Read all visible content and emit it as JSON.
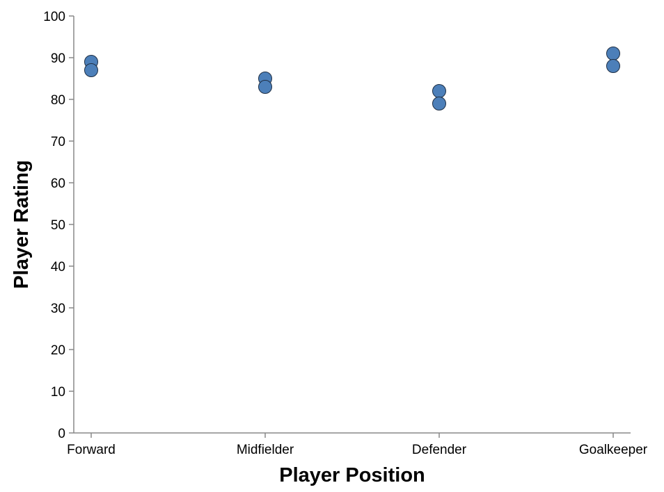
{
  "chart_data": {
    "type": "scatter",
    "title": "",
    "xlabel": "Player Position",
    "ylabel": "Player Rating",
    "categories": [
      "Forward",
      "Midfielder",
      "Defender",
      "Goalkeeper"
    ],
    "ylim": [
      0,
      100
    ],
    "yticks": [
      0,
      10,
      20,
      30,
      40,
      50,
      60,
      70,
      80,
      90,
      100
    ],
    "grid": false,
    "legend": "none",
    "points": [
      {
        "x": "Forward",
        "y": 89
      },
      {
        "x": "Forward",
        "y": 87
      },
      {
        "x": "Midfielder",
        "y": 85
      },
      {
        "x": "Midfielder",
        "y": 83
      },
      {
        "x": "Defender",
        "y": 82
      },
      {
        "x": "Defender",
        "y": 79
      },
      {
        "x": "Goalkeeper",
        "y": 91
      },
      {
        "x": "Goalkeeper",
        "y": 88
      }
    ],
    "colors": {
      "point_fill": "#4c7fb9",
      "point_stroke": "#1f2f44",
      "axis": "#888888",
      "text": "#000000"
    }
  }
}
